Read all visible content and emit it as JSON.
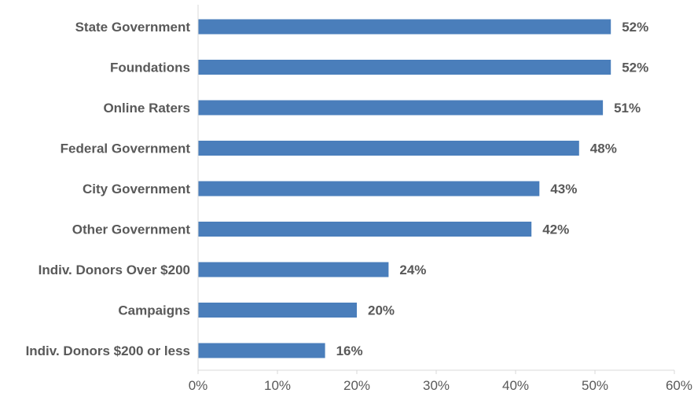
{
  "chart_data": {
    "type": "bar",
    "orientation": "horizontal",
    "categories": [
      "State Government",
      "Foundations",
      "Online Raters",
      "Federal Government",
      "City Government",
      "Other Government",
      "Indiv. Donors Over $200",
      "Campaigns",
      "Indiv. Donors $200 or less"
    ],
    "values": [
      52,
      52,
      51,
      48,
      43,
      42,
      24,
      20,
      16
    ],
    "value_labels": [
      "52%",
      "52%",
      "51%",
      "48%",
      "43%",
      "42%",
      "24%",
      "20%",
      "16%"
    ],
    "xlim": [
      0,
      60
    ],
    "x_ticks": [
      0,
      10,
      20,
      30,
      40,
      50,
      60
    ],
    "x_tick_labels": [
      "0%",
      "10%",
      "20%",
      "30%",
      "40%",
      "50%",
      "60%"
    ],
    "title": "",
    "xlabel": "",
    "ylabel": "",
    "grid": false,
    "legend": "none",
    "bar_color": "#4a7ebb"
  }
}
